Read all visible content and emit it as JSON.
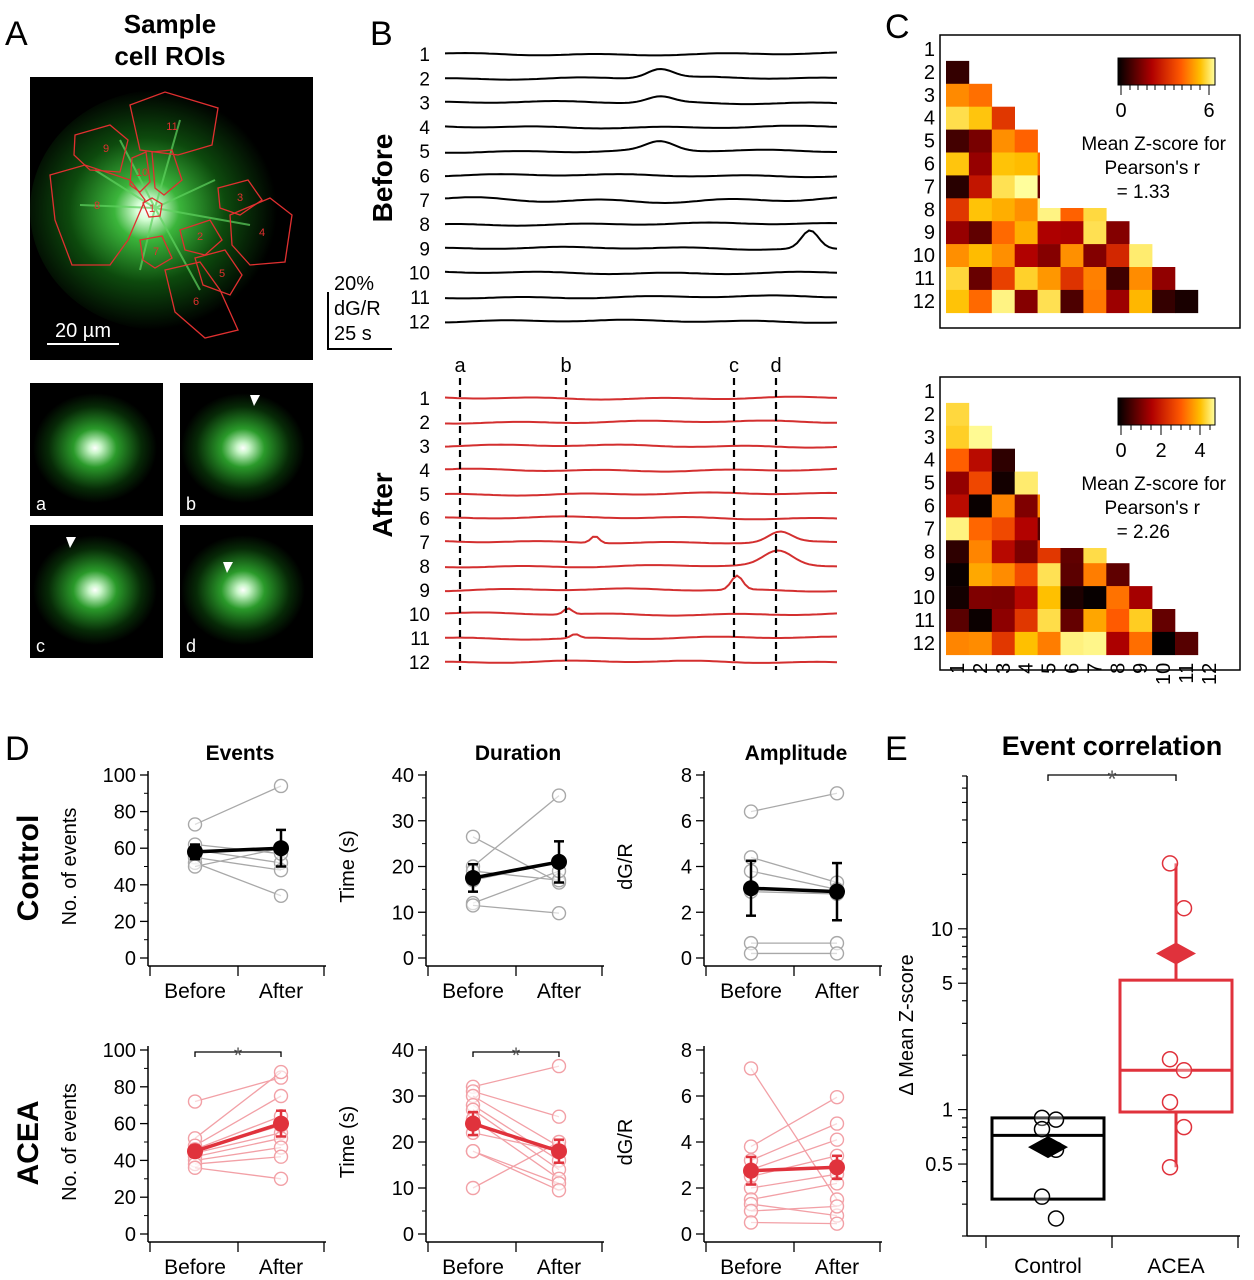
{
  "panel_letters": {
    "A": "A",
    "B": "B",
    "C": "C",
    "D": "D",
    "E": "E"
  },
  "panelA": {
    "title_line1": "Sample",
    "title_line2": "cell ROIs",
    "scale_bar": "20 µm",
    "roi_labels": [
      "1",
      "2",
      "3",
      "4",
      "5",
      "6",
      "7",
      "8",
      "9",
      "10",
      "11"
    ],
    "subpanel_labels": [
      "a",
      "b",
      "c",
      "d"
    ]
  },
  "panelB": {
    "before_label": "Before",
    "after_label": "After",
    "scale_line1": "20%",
    "scale_line2": "dG/R",
    "scale_line3": "25 s",
    "trace_labels": [
      "1",
      "2",
      "3",
      "4",
      "5",
      "6",
      "7",
      "8",
      "9",
      "10",
      "11",
      "12"
    ],
    "marker_labels": [
      "a",
      "b",
      "c",
      "d"
    ],
    "trace_color_before": "#000000",
    "trace_color_after": "#d32f2f"
  },
  "panelC": {
    "top_caption": [
      "Mean Z-score for",
      "Pearson's r",
      "= 1.33"
    ],
    "bottom_caption": [
      "Mean Z-score for",
      "Pearson's r",
      "= 2.26"
    ],
    "top_colorbar_ticks": [
      "0",
      "6"
    ],
    "bottom_colorbar_ticks": [
      "0",
      "2",
      "4"
    ],
    "row_labels": [
      "1",
      "2",
      "3",
      "4",
      "5",
      "6",
      "7",
      "8",
      "9",
      "10",
      "11",
      "12"
    ],
    "colormap": "hot"
  },
  "panelD": {
    "row_labels": [
      "Control",
      "ACEA"
    ],
    "col_titles": [
      "Events",
      "Duration",
      "Amplitude"
    ],
    "ylabels": [
      "No. of events",
      "Time (s)",
      "dG/R"
    ],
    "xcats": [
      "Before",
      "After"
    ],
    "sig_marker": "*",
    "control_color": "#000000",
    "acea_color": "#e0323c"
  },
  "panelE": {
    "title": "Event correlation",
    "ylabel": "Δ Mean Z-score",
    "categories": [
      "Control",
      "ACEA"
    ],
    "yticks": [
      "0.5",
      "1",
      "5",
      "10"
    ],
    "sig_marker": "*"
  },
  "chart_data": [
    {
      "type": "line",
      "panel": "D-Control-Events",
      "ylabel": "No. of events",
      "ylim": [
        0,
        100
      ],
      "yticks": [
        0,
        20,
        40,
        60,
        80,
        100
      ],
      "categories": [
        "Before",
        "After"
      ],
      "mean": [
        58,
        60
      ],
      "err": [
        4,
        10
      ],
      "pairs": [
        [
          73,
          94
        ],
        [
          59,
          52
        ],
        [
          55,
          48
        ],
        [
          52,
          34
        ],
        [
          50,
          60
        ],
        [
          62,
          57
        ]
      ]
    },
    {
      "type": "line",
      "panel": "D-Control-Duration",
      "ylabel": "Time (s)",
      "ylim": [
        0,
        40
      ],
      "yticks": [
        0,
        10,
        20,
        30,
        40
      ],
      "categories": [
        "Before",
        "After"
      ],
      "mean": [
        17.5,
        21
      ],
      "err": [
        3,
        4.5
      ],
      "pairs": [
        [
          26.5,
          16.5
        ],
        [
          20,
          35.5
        ],
        [
          19,
          17
        ],
        [
          12,
          19
        ],
        [
          11.5,
          9.8
        ],
        [
          17,
          21
        ]
      ]
    },
    {
      "type": "line",
      "panel": "D-Control-Amplitude",
      "ylabel": "dG/R",
      "ylim": [
        0,
        8
      ],
      "yticks": [
        0,
        2,
        4,
        6,
        8
      ],
      "categories": [
        "Before",
        "After"
      ],
      "mean": [
        3.05,
        2.9
      ],
      "err": [
        1.2,
        1.25
      ],
      "pairs": [
        [
          6.4,
          7.2
        ],
        [
          4.4,
          3.3
        ],
        [
          3.8,
          3.0
        ],
        [
          0.65,
          0.65
        ],
        [
          0.2,
          0.2
        ],
        [
          2.9,
          2.8
        ]
      ]
    },
    {
      "type": "line",
      "panel": "D-ACEA-Events",
      "ylabel": "No. of events",
      "ylim": [
        0,
        100
      ],
      "yticks": [
        0,
        20,
        40,
        60,
        80,
        100
      ],
      "categories": [
        "Before",
        "After"
      ],
      "mean": [
        45,
        60
      ],
      "err": [
        3,
        7
      ],
      "pairs": [
        [
          72,
          85
        ],
        [
          52,
          88
        ],
        [
          48,
          75
        ],
        [
          46,
          64
        ],
        [
          44,
          55
        ],
        [
          42,
          52
        ],
        [
          40,
          47
        ],
        [
          38,
          42
        ],
        [
          36,
          30
        ],
        [
          45,
          59
        ]
      ]
    },
    {
      "type": "line",
      "panel": "D-ACEA-Duration",
      "ylabel": "Time (s)",
      "ylim": [
        0,
        40
      ],
      "yticks": [
        0,
        10,
        20,
        30,
        40
      ],
      "categories": [
        "Before",
        "After"
      ],
      "mean": [
        24,
        18
      ],
      "err": [
        2.5,
        2.5
      ],
      "pairs": [
        [
          32,
          36.5
        ],
        [
          31,
          25.5
        ],
        [
          30,
          19
        ],
        [
          28,
          16
        ],
        [
          27,
          14
        ],
        [
          25,
          12
        ],
        [
          22,
          18
        ],
        [
          18,
          11
        ],
        [
          18,
          9.5
        ],
        [
          10,
          20
        ]
      ]
    },
    {
      "type": "line",
      "panel": "D-ACEA-Amplitude",
      "ylabel": "dG/R",
      "ylim": [
        0,
        8
      ],
      "yticks": [
        0,
        2,
        4,
        6,
        8
      ],
      "categories": [
        "Before",
        "After"
      ],
      "mean": [
        2.75,
        2.9
      ],
      "err": [
        0.6,
        0.5
      ],
      "pairs": [
        [
          7.2,
          1.5
        ],
        [
          3.8,
          5.95
        ],
        [
          3.2,
          4.8
        ],
        [
          2.8,
          4.1
        ],
        [
          2.5,
          3.4
        ],
        [
          2.0,
          2.6
        ],
        [
          1.5,
          2.2
        ],
        [
          1.3,
          0.8
        ],
        [
          1.0,
          1.2
        ],
        [
          0.5,
          0.45
        ]
      ]
    },
    {
      "type": "box",
      "panel": "E",
      "title": "Event correlation",
      "ylabel": "Δ Mean Z-score",
      "yscale": "log",
      "ylim": [
        0.2,
        70
      ],
      "categories": [
        "Control",
        "ACEA"
      ],
      "boxes": [
        {
          "name": "Control",
          "q1": 0.32,
          "median": 0.72,
          "q3": 0.9,
          "whisker_low": 0.32,
          "whisker_high": 0.9,
          "mean": 0.62,
          "points": [
            0.9,
            0.88,
            0.78,
            0.6,
            0.33,
            0.25
          ]
        },
        {
          "name": "ACEA",
          "q1": 0.97,
          "median": 1.65,
          "q3": 5.2,
          "whisker_low": 0.48,
          "whisker_high": 23,
          "mean": 7.3,
          "points": [
            23,
            13,
            1.9,
            1.65,
            1.1,
            0.8,
            0.48
          ]
        }
      ]
    }
  ]
}
